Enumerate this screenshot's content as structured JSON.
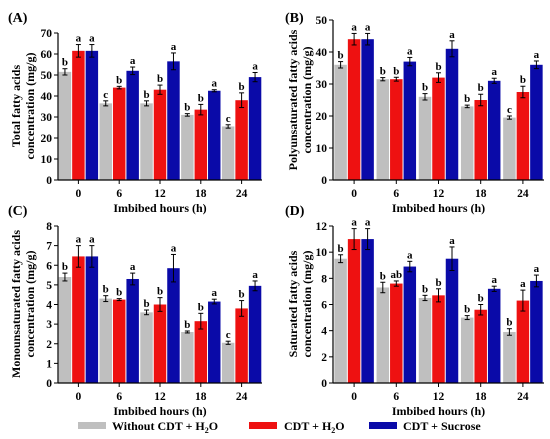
{
  "colors": {
    "without_cdt": "#bfbfbf",
    "cdt_h2o": "#ee1111",
    "cdt_sucrose": "#0a0aa8"
  },
  "legend": {
    "items": [
      {
        "key": "without_cdt",
        "label_main": "Without CDT + H",
        "label_sub": "2",
        "label_end": "O"
      },
      {
        "key": "cdt_h2o",
        "label_main": "CDT + H",
        "label_sub": "2",
        "label_end": "O"
      },
      {
        "key": "cdt_sucrose",
        "label_main": "CDT + Sucrose",
        "label_sub": "",
        "label_end": ""
      }
    ]
  },
  "chart_data": [
    {
      "type": "bar",
      "panel_label": "(A)",
      "ylabel_lines": [
        "Total fatty acids",
        "concentration (mg/g)"
      ],
      "xlabel": "Imbibed hours (h)",
      "categories": [
        "0",
        "6",
        "12",
        "18",
        "24"
      ],
      "ylim": [
        0,
        70
      ],
      "yticks": [
        0,
        10,
        20,
        30,
        40,
        50,
        60,
        70
      ],
      "series": [
        {
          "key": "without_cdt",
          "values": [
            51.5,
            36.5,
            36.5,
            31,
            25.5
          ],
          "errors": [
            1.5,
            1.2,
            1.2,
            0.6,
            0.8
          ],
          "letters": [
            "b",
            "c",
            "b",
            "b",
            "c"
          ]
        },
        {
          "key": "cdt_h2o",
          "values": [
            61.5,
            44,
            43,
            33.5,
            38
          ],
          "errors": [
            3,
            0.6,
            2.2,
            2.5,
            3.5
          ],
          "letters": [
            "a",
            "b",
            "b",
            "b",
            "b"
          ]
        },
        {
          "key": "cdt_sucrose",
          "values": [
            61.5,
            52,
            56.5,
            42.5,
            49
          ],
          "errors": [
            3,
            1.8,
            4,
            0.5,
            2.2
          ],
          "letters": [
            "a",
            "a",
            "a",
            "a",
            "a"
          ]
        }
      ]
    },
    {
      "type": "bar",
      "panel_label": "(B)",
      "ylabel_lines": [
        "Polyunsaturated fatty acids",
        "concentration (mg/g)"
      ],
      "xlabel": "Imbibed hours (h)",
      "categories": [
        "0",
        "6",
        "12",
        "18",
        "24"
      ],
      "ylim": [
        0,
        50
      ],
      "yticks": [
        0,
        10,
        20,
        30,
        40,
        50
      ],
      "series": [
        {
          "key": "without_cdt",
          "values": [
            36,
            31.5,
            26,
            23,
            19.5
          ],
          "errors": [
            1,
            0.5,
            1,
            0.4,
            0.5
          ],
          "letters": [
            "b",
            "b",
            "b",
            "b",
            "c"
          ]
        },
        {
          "key": "cdt_h2o",
          "values": [
            44,
            31.5,
            32,
            25,
            27.5
          ],
          "errors": [
            1.8,
            0.6,
            1.5,
            1.8,
            1.8
          ],
          "letters": [
            "a",
            "b",
            "b",
            "b",
            "b"
          ]
        },
        {
          "key": "cdt_sucrose",
          "values": [
            44,
            37,
            41,
            31,
            36
          ],
          "errors": [
            1.8,
            1.3,
            2.5,
            0.8,
            1.2
          ],
          "letters": [
            "a",
            "a",
            "a",
            "a",
            "a"
          ]
        }
      ]
    },
    {
      "type": "bar",
      "panel_label": "(C)",
      "ylabel_lines": [
        "Monounsaturated fatty acids",
        "concentration (mg/g)"
      ],
      "xlabel": "Imbibed hours (h)",
      "categories": [
        "0",
        "6",
        "12",
        "18",
        "24"
      ],
      "ylim": [
        0,
        8
      ],
      "yticks": [
        0,
        1,
        2,
        3,
        4,
        5,
        6,
        7,
        8
      ],
      "series": [
        {
          "key": "without_cdt",
          "values": [
            5.4,
            4.3,
            3.6,
            2.6,
            2.05
          ],
          "errors": [
            0.2,
            0.15,
            0.12,
            0.05,
            0.08
          ],
          "letters": [
            "b",
            "b",
            "b",
            "b",
            "c"
          ]
        },
        {
          "key": "cdt_h2o",
          "values": [
            6.45,
            4.25,
            4.0,
            3.15,
            3.8
          ],
          "errors": [
            0.55,
            0.05,
            0.35,
            0.4,
            0.4
          ],
          "letters": [
            "a",
            "b",
            "b",
            "b",
            "b"
          ]
        },
        {
          "key": "cdt_sucrose",
          "values": [
            6.45,
            5.3,
            5.85,
            4.15,
            4.95
          ],
          "errors": [
            0.55,
            0.3,
            0.7,
            0.12,
            0.25
          ],
          "letters": [
            "a",
            "a",
            "a",
            "a",
            "a"
          ]
        }
      ]
    },
    {
      "type": "bar",
      "panel_label": "(D)",
      "ylabel_lines": [
        "Saturated fatty acids",
        "concentration (mg/g)"
      ],
      "xlabel": "Imbibed hours (h)",
      "categories": [
        "0",
        "6",
        "12",
        "18",
        "24"
      ],
      "ylim": [
        0,
        12
      ],
      "yticks": [
        0,
        2,
        4,
        6,
        8,
        10,
        12
      ],
      "series": [
        {
          "key": "without_cdt",
          "values": [
            9.5,
            7.3,
            6.5,
            5.0,
            3.9
          ],
          "errors": [
            0.3,
            0.4,
            0.2,
            0.15,
            0.25
          ],
          "letters": [
            "b",
            "b",
            "b",
            "b",
            "b"
          ]
        },
        {
          "key": "cdt_h2o",
          "values": [
            11.0,
            7.6,
            6.7,
            5.6,
            6.3
          ],
          "errors": [
            0.8,
            0.2,
            0.5,
            0.4,
            0.8
          ],
          "letters": [
            "a",
            "ab",
            "b",
            "b",
            "a"
          ]
        },
        {
          "key": "cdt_sucrose",
          "values": [
            11.0,
            8.9,
            9.5,
            7.2,
            7.8
          ],
          "errors": [
            0.8,
            0.4,
            0.9,
            0.2,
            0.45
          ],
          "letters": [
            "a",
            "a",
            "a",
            "a",
            "a"
          ]
        }
      ]
    }
  ]
}
